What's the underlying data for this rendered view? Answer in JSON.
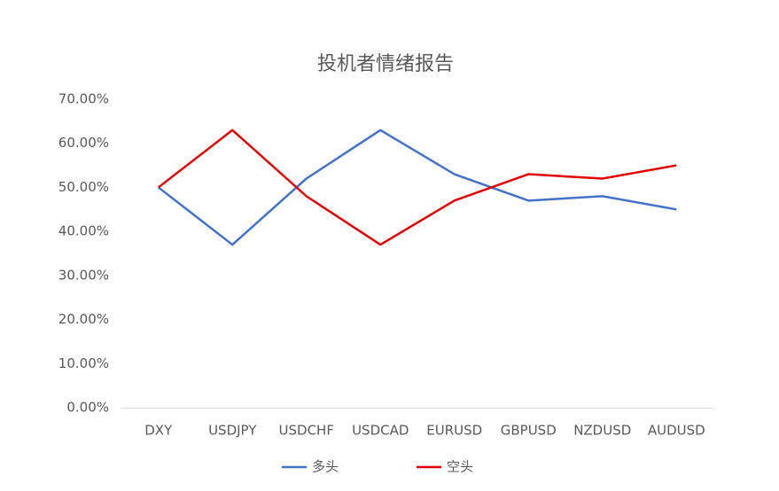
{
  "chart_data": {
    "type": "line",
    "title": "投机者情绪报告",
    "categories": [
      "DXY",
      "USDJPY",
      "USDCHF",
      "USDCAD",
      "EURUSD",
      "GBPUSD",
      "NZDUSD",
      "AUDUSD"
    ],
    "series": [
      {
        "name": "多头",
        "color": "#4472c4",
        "values": [
          50,
          37,
          52,
          63,
          53,
          47,
          48,
          45
        ]
      },
      {
        "name": "空头",
        "color": "#e00000",
        "values": [
          50,
          63,
          48,
          37,
          47,
          53,
          52,
          55
        ]
      }
    ],
    "ylim": [
      0,
      70
    ],
    "yticks": [
      {
        "value": 0,
        "label": "0.00%"
      },
      {
        "value": 10,
        "label": "10.00%"
      },
      {
        "value": 20,
        "label": "20.00%"
      },
      {
        "value": 30,
        "label": "30.00%"
      },
      {
        "value": 40,
        "label": "40.00%"
      },
      {
        "value": 50,
        "label": "50.00%"
      },
      {
        "value": 60,
        "label": "60.00%"
      },
      {
        "value": 70,
        "label": "70.00%"
      }
    ],
    "grid": false,
    "legend": "bottom"
  }
}
